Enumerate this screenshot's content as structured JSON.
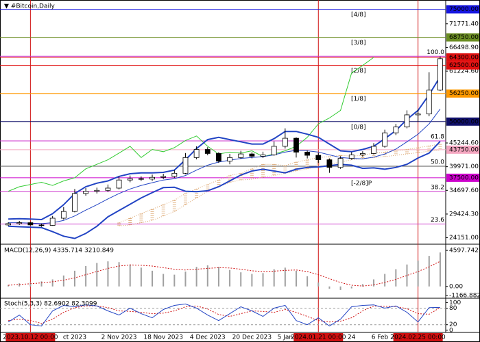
{
  "chart_data": [
    {
      "type": "candlestick",
      "title": "▼ #Bitcoin,Daily",
      "categories": [
        "1",
        null,
        "2023.10.12 00:00",
        null,
        null,
        null,
        "ct 2023",
        null,
        null,
        null,
        "2 Nov 2023",
        null,
        null,
        null,
        "18 Nov 2023",
        null,
        null,
        null,
        "4 Dec 2023",
        null,
        null,
        null,
        "20 Dec 2023",
        null,
        null,
        "5 Jan",
        null,
        null,
        "2024.01.21 00:00",
        null,
        null,
        "24",
        null,
        null,
        "6 Feb 20",
        null,
        null,
        "2024.02.25 00:00",
        null,
        null
      ],
      "marked": [
        "2023.10.12 00:00",
        "2024.01.21 00:00",
        "2024.02.25 00:00"
      ],
      "marked_color": "#d01010",
      "open": [
        27000,
        27300,
        27500,
        27000,
        26900,
        28500,
        30000,
        34000,
        34500,
        34700,
        35200,
        37000,
        37300,
        37200,
        37600,
        37800,
        38500,
        42000,
        43800,
        42900,
        41200,
        42000,
        42800,
        42300,
        42600,
        44500,
        46300,
        43200,
        42500,
        41500,
        39800,
        41800,
        42600,
        42900,
        44500,
        47500,
        48800,
        51500,
        51700,
        57000
      ],
      "high": [
        27600,
        27900,
        27700,
        27300,
        29000,
        31000,
        35000,
        35200,
        35300,
        36000,
        37800,
        38000,
        37800,
        38200,
        38400,
        39200,
        43000,
        44500,
        44300,
        43200,
        42800,
        43500,
        43200,
        43300,
        45600,
        48500,
        46500,
        43600,
        43000,
        41800,
        42300,
        43200,
        43400,
        45200,
        48200,
        49500,
        52500,
        52800,
        61000,
        64500
      ],
      "low": [
        26800,
        27000,
        26900,
        26600,
        26800,
        28200,
        29800,
        33500,
        34000,
        34300,
        34900,
        36500,
        36800,
        36800,
        37200,
        37500,
        38300,
        41600,
        42500,
        40800,
        40500,
        41700,
        41800,
        41900,
        42400,
        44000,
        42000,
        41800,
        40800,
        38600,
        39500,
        41500,
        42200,
        42700,
        44200,
        47000,
        48500,
        50000,
        51200,
        56800
      ],
      "close": [
        27300,
        27500,
        27000,
        26900,
        28500,
        30000,
        34000,
        34500,
        34700,
        35200,
        37000,
        37300,
        37200,
        37600,
        37800,
        38500,
        42000,
        43800,
        42900,
        41200,
        42000,
        42800,
        42300,
        42600,
        44500,
        46300,
        43200,
        42500,
        41500,
        39800,
        41800,
        42600,
        42900,
        44500,
        47500,
        48800,
        51500,
        51700,
        57000,
        64000
      ],
      "up_color": "#ffffff",
      "down_color": "#000000",
      "bands": {
        "color": "#2244c4",
        "upper": [
          28300,
          28400,
          28300,
          28200,
          29500,
          31500,
          34000,
          35500,
          36300,
          36800,
          37800,
          38400,
          38600,
          38600,
          38700,
          39200,
          41500,
          44000,
          46000,
          46500,
          46000,
          45500,
          45000,
          45000,
          46200,
          47800,
          47800,
          47200,
          46500,
          45000,
          43500,
          43300,
          43800,
          44500,
          46200,
          48000,
          50500,
          52500,
          56000,
          60000
        ],
        "middle": [
          27500,
          27500,
          27400,
          27300,
          27500,
          28000,
          29000,
          30300,
          31500,
          32800,
          34000,
          35000,
          35800,
          36400,
          37000,
          37300,
          38000,
          39200,
          40300,
          41000,
          41400,
          41800,
          42000,
          42200,
          42600,
          43200,
          43600,
          43500,
          43200,
          42600,
          42000,
          41800,
          41700,
          42100,
          42800,
          43900,
          45500,
          47200,
          49500,
          52800
        ],
        "lower": [
          26700,
          26600,
          26500,
          26400,
          25500,
          24500,
          24000,
          25100,
          26700,
          28800,
          30200,
          31600,
          33000,
          34200,
          35300,
          35400,
          34500,
          34400,
          34600,
          35500,
          36800,
          38100,
          39000,
          39400,
          39000,
          38600,
          39400,
          39800,
          39900,
          40200,
          40500,
          40300,
          39600,
          39700,
          39400,
          39800,
          40500,
          41900,
          43000,
          45600
        ]
      },
      "chikou": {
        "color": "#33cc33",
        "values": [
          34500,
          35500,
          36000,
          36500,
          35800,
          36800,
          37500,
          39500,
          40500,
          41500,
          43000,
          44500,
          42000,
          43800,
          43300,
          44200,
          45800,
          46800,
          44500,
          42800,
          43200,
          43000,
          43500,
          42200,
          42800,
          43500,
          44500,
          46500,
          49500,
          50800,
          52500,
          60800,
          62500,
          64300,
          null,
          null,
          null,
          null,
          null,
          null
        ]
      },
      "cloud": {
        "color": "#d9a066",
        "span_a": [
          null,
          null,
          null,
          null,
          null,
          null,
          null,
          null,
          null,
          null,
          27500,
          28500,
          29500,
          30500,
          31500,
          32500,
          34000,
          35000,
          36000,
          37000,
          38000,
          38500,
          39500,
          40500,
          40500,
          40200,
          41000,
          41500,
          42000,
          42200,
          42500,
          42300,
          42500,
          43000,
          43200,
          43500,
          43800,
          44200,
          44600,
          45000
        ],
        "span_b": [
          null,
          null,
          null,
          null,
          null,
          null,
          null,
          null,
          null,
          null,
          26800,
          27000,
          27500,
          28000,
          29000,
          30000,
          31500,
          33000,
          34500,
          35500,
          36500,
          37000,
          37200,
          37600,
          38000,
          38500,
          39000,
          39500,
          40000,
          40500,
          41000,
          41500,
          41800,
          42000,
          42200,
          42500,
          42800,
          43100,
          43400,
          43700
        ]
      },
      "levels": [
        {
          "label": "[4/8]",
          "value": 75000,
          "price_label": "75000.00",
          "color": "#1515e0"
        },
        {
          "label": "[3/8]",
          "value": 68750,
          "price_label": "68750.00",
          "color": "#6b8e23"
        },
        {
          "value": 64300,
          "price_label": "64300.00",
          "color": "#e01010"
        },
        {
          "label": "[2/8]",
          "value": 62500,
          "price_label": "62500.00",
          "color": "#e01010"
        },
        {
          "label": "[1/8]",
          "value": 56250,
          "price_label": "56250.00",
          "color": "#ff9900"
        },
        {
          "label": "[0/8]",
          "value": 50000,
          "price_label": "50000.00",
          "color": "#10106a"
        },
        {
          "value": 43750,
          "price_label": "43750.00",
          "color": "#f4a6c0"
        },
        {
          "label": "[-2/8]P",
          "value": 37500,
          "price_label": "37500.00",
          "color": "#cc00cc"
        }
      ],
      "fib": [
        {
          "label": "100.0",
          "value": 64540,
          "color": "#cc33cc"
        },
        {
          "label": "61.8",
          "value": 45710,
          "color": "#cc33cc"
        },
        {
          "label": "50.0",
          "value": 40080,
          "color": "#555555"
        },
        {
          "label": "38.2",
          "value": 34450,
          "color": "#cc33cc"
        },
        {
          "label": "23.6",
          "value": 27200,
          "color": "#cc33cc"
        }
      ],
      "ylim": [
        23020,
        76610
      ],
      "yticks": [
        {
          "value": 71771.4,
          "label": "71771.40"
        },
        {
          "value": 66498.9,
          "label": "66498.90"
        },
        {
          "value": 61224.6,
          "label": "61224.60"
        },
        {
          "value": 45244.6,
          "label": "45244.60"
        },
        {
          "value": 39971,
          "label": "39971.00"
        },
        {
          "value": 34697.6,
          "label": "34697.60"
        },
        {
          "value": 29424.3,
          "label": "29424.30"
        },
        {
          "value": 24151,
          "label": "24151.00"
        }
      ]
    },
    {
      "type": "macd",
      "title": "MACD(12,26,9) 4335.714 3210.849",
      "values": [
        200,
        400,
        500,
        650,
        900,
        1400,
        2000,
        2600,
        3000,
        3200,
        3100,
        2800,
        2400,
        2000,
        1600,
        1500,
        1900,
        2500,
        2700,
        2500,
        2100,
        1800,
        1600,
        1700,
        2200,
        2400,
        2000,
        1300,
        500,
        -300,
        -450,
        -250,
        300,
        900,
        1600,
        2200,
        2800,
        3300,
        3900,
        4336
      ],
      "signal": [
        150,
        250,
        350,
        450,
        600,
        800,
        1100,
        1500,
        1900,
        2300,
        2600,
        2750,
        2700,
        2600,
        2400,
        2200,
        2100,
        2200,
        2300,
        2400,
        2350,
        2200,
        2000,
        1900,
        1950,
        2050,
        2100,
        1900,
        1500,
        1000,
        500,
        150,
        50,
        200,
        500,
        900,
        1400,
        1900,
        2500,
        3211
      ],
      "color": "#a0a0a0",
      "signal_color": "#d01010",
      "ylim": [
        -1330,
        5130
      ],
      "yticks": [
        4597.742,
        {
          "value": 0,
          "label": "0.00"
        },
        -1166.882
      ]
    },
    {
      "type": "stochastic",
      "title": "Stoch(5,3,3) 82.6902 82.3099",
      "k": [
        30,
        55,
        20,
        15,
        70,
        90,
        85,
        92,
        88,
        70,
        55,
        80,
        60,
        45,
        75,
        90,
        95,
        80,
        55,
        35,
        60,
        85,
        70,
        50,
        80,
        90,
        35,
        20,
        45,
        15,
        40,
        85,
        90,
        92,
        80,
        88,
        65,
        30,
        82,
        82.69
      ],
      "d": [
        35,
        40,
        35,
        25,
        40,
        65,
        82,
        88,
        88,
        82,
        70,
        68,
        65,
        60,
        62,
        70,
        85,
        88,
        77,
        57,
        50,
        60,
        70,
        68,
        65,
        75,
        65,
        50,
        35,
        30,
        33,
        45,
        70,
        88,
        87,
        86,
        78,
        60,
        58,
        82.31
      ],
      "k_color": "#2244c4",
      "d_color": "#d01010",
      "levels": [
        80,
        20
      ],
      "ylim": [
        -3,
        106
      ],
      "yticks": [
        100,
        80,
        20,
        0
      ]
    }
  ]
}
